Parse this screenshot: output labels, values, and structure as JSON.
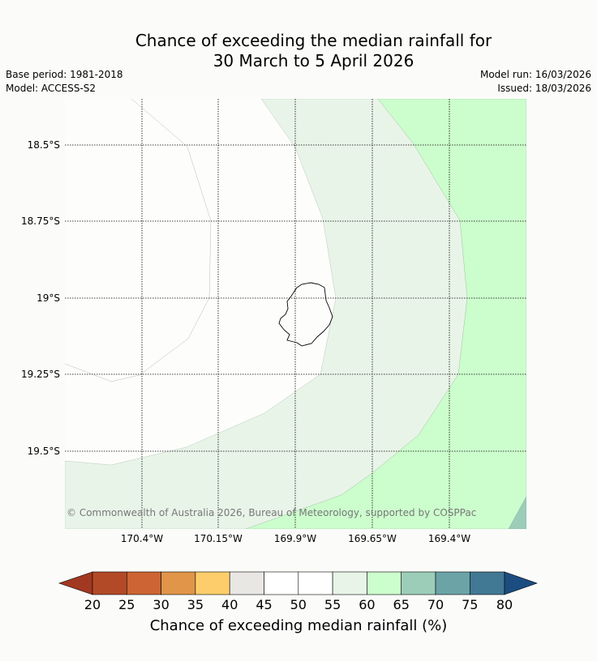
{
  "title": {
    "line1": "Chance of exceeding the median rainfall for",
    "line2": "30 March to 5 April 2026"
  },
  "meta": {
    "base_period": "Base period: 1981-2018",
    "model": "Model: ACCESS-S2",
    "model_run": "Model run: 16/03/2026",
    "issued": "Issued: 18/03/2026"
  },
  "map": {
    "lat_labels": [
      "18.5°S",
      "18.75°S",
      "19°S",
      "19.25°S",
      "19.5°S"
    ],
    "lon_labels": [
      "170.4°W",
      "170.15°W",
      "169.9°W",
      "169.65°W",
      "169.4°W"
    ],
    "copyright": "© Commonwealth of Australia 2026, Bureau of Meteorology, supported by COSPPac"
  },
  "legend": {
    "title": "Chance of exceeding median rainfall (%)",
    "ticks": [
      "20",
      "25",
      "30",
      "35",
      "40",
      "45",
      "50",
      "55",
      "60",
      "65",
      "70",
      "75",
      "80"
    ],
    "colors": {
      "under_20": "#a23821",
      "c20_25": "#b34a27",
      "c25_30": "#cc6533",
      "c30_35": "#e09548",
      "c35_40": "#fdcd6b",
      "c40_45": "#e9e7e4",
      "c45_50": "#ffffff",
      "c50_55": "#ffffff",
      "c55_60": "#e9f4e8",
      "c60_65": "#ccfdcd",
      "c65_70": "#9ccdb9",
      "c70_75": "#6ba3a7",
      "c75_80": "#417893",
      "over_80": "#1b4d80"
    }
  }
}
